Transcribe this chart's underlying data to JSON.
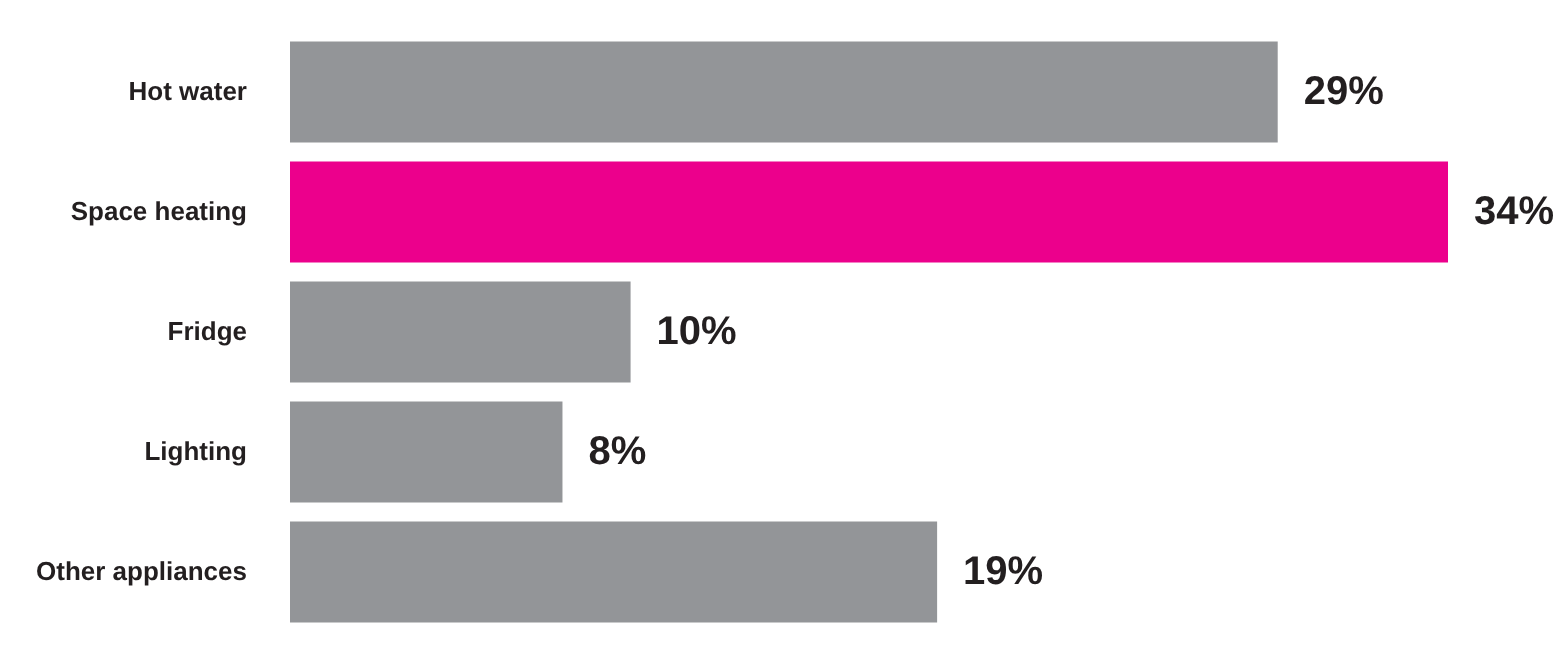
{
  "chart_data": {
    "type": "bar",
    "orientation": "horizontal",
    "categories": [
      "Hot water",
      "Space heating",
      "Fridge",
      "Lighting",
      "Other appliances"
    ],
    "values": [
      29,
      34,
      10,
      8,
      19
    ],
    "colors": [
      "#939598",
      "#ec008c",
      "#939598",
      "#939598",
      "#939598"
    ],
    "value_labels": [
      "29%",
      "34%",
      "10%",
      "8%",
      "19%"
    ]
  }
}
